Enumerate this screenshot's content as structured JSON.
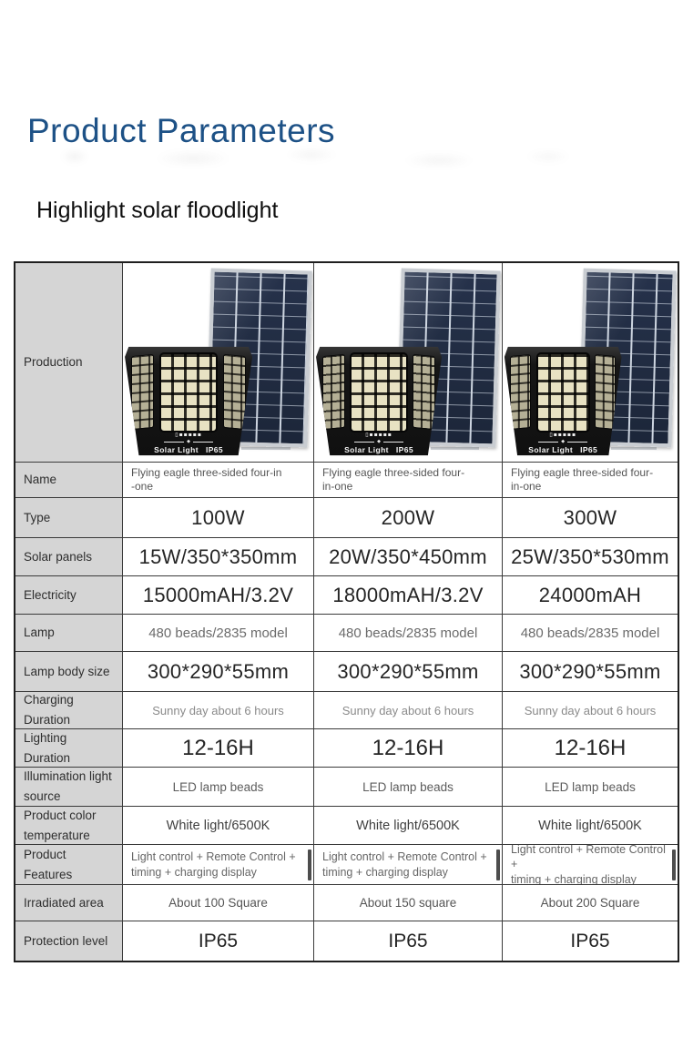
{
  "page": {
    "title": "Product Parameters",
    "subtitle": "Highlight solar floodlight"
  },
  "colors": {
    "title_blue": "#1d5186",
    "label_gray": "#d5d5d5",
    "table_border": "#3a3a3a",
    "panel_navy": "#26324b",
    "frame_silver": "#c9cdd2"
  },
  "product_image": {
    "brand": "Solar Light",
    "rating": "IP65",
    "battery_icon_glyph": "▯▪▪▪▪▪",
    "divider_glyph": "◆"
  },
  "table": {
    "production_label": "Production",
    "rows": [
      {
        "label": "Name",
        "c1l1": "Flying eagle three-sided four-in",
        "c1l2": "-one",
        "c2l1": "Flying eagle three-sided four-",
        "c2l2": "in-one",
        "c3l1": "Flying eagle three-sided four-",
        "c3l2": "in-one"
      },
      {
        "label": "Type",
        "c1": "100W",
        "c2": "200W",
        "c3": "300W"
      },
      {
        "label": "Solar panels",
        "c1": "15W/350*350mm",
        "c2": "20W/350*450mm",
        "c3": "25W/350*530mm"
      },
      {
        "label": "Electricity",
        "c1": "15000mAH/3.2V",
        "c2": "18000mAH/3.2V",
        "c3": "24000mAH"
      },
      {
        "label": "Lamp",
        "c1": "480 beads/2835 model",
        "c2": "480 beads/2835 model",
        "c3": "480 beads/2835 model"
      },
      {
        "label": "Lamp body size",
        "c1": "300*290*55mm",
        "c2": "300*290*55mm",
        "c3": "300*290*55mm"
      },
      {
        "label": "Charging Duration",
        "c1": "Sunny day about 6 hours",
        "c2": "Sunny day about 6 hours",
        "c3": "Sunny day about 6 hours"
      },
      {
        "label": "Lighting Duration",
        "c1": "12-16H",
        "c2": "12-16H",
        "c3": "12-16H"
      },
      {
        "label": "Illumination light source",
        "c1": "LED lamp beads",
        "c2": "LED lamp beads",
        "c3": "LED lamp beads"
      },
      {
        "label": "Product color temperature",
        "c1": "White light/6500K",
        "c2": "White light/6500K",
        "c3": "White light/6500K"
      },
      {
        "label": "Product Features",
        "c1l1": "Light control + Remote Control +",
        "c1l2": "timing + charging display",
        "c2l1": "Light control + Remote Control +",
        "c2l2": "timing + charging display",
        "c3l1": "Light control + Remote Control +",
        "c3l2": "timing + charging display"
      },
      {
        "label": "Irradiated area",
        "c1": "About 100 Square",
        "c2": "About 150 square",
        "c3": "About 200 Square"
      },
      {
        "label": "Protection level",
        "c1": "IP65",
        "c2": "IP65",
        "c3": "IP65"
      }
    ]
  }
}
